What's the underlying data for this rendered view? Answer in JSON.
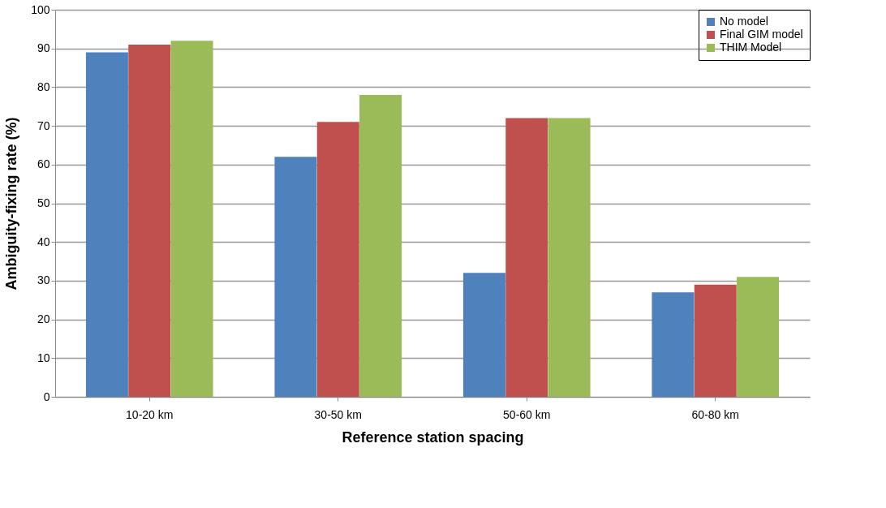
{
  "chart_data": {
    "type": "bar",
    "xlabel": "Reference station spacing",
    "ylabel": "Ambiguity-fixing  rate (%)",
    "categories": [
      "10-20 km",
      "30-50 km",
      "50-60 km",
      "60-80 km"
    ],
    "series": [
      {
        "name": "No model",
        "color": "#4f81bd",
        "values": [
          89,
          62,
          32,
          27
        ]
      },
      {
        "name": "Final GIM model",
        "color": "#c0504d",
        "values": [
          91,
          71,
          72,
          29
        ]
      },
      {
        "name": "THIM Model",
        "color": "#9bbb59",
        "values": [
          92,
          78,
          72,
          31
        ]
      }
    ],
    "ylim": [
      0,
      100
    ],
    "yticks": [
      0,
      10,
      20,
      30,
      40,
      50,
      60,
      70,
      80,
      90,
      100
    ],
    "grid": "y",
    "legend": "top right"
  }
}
